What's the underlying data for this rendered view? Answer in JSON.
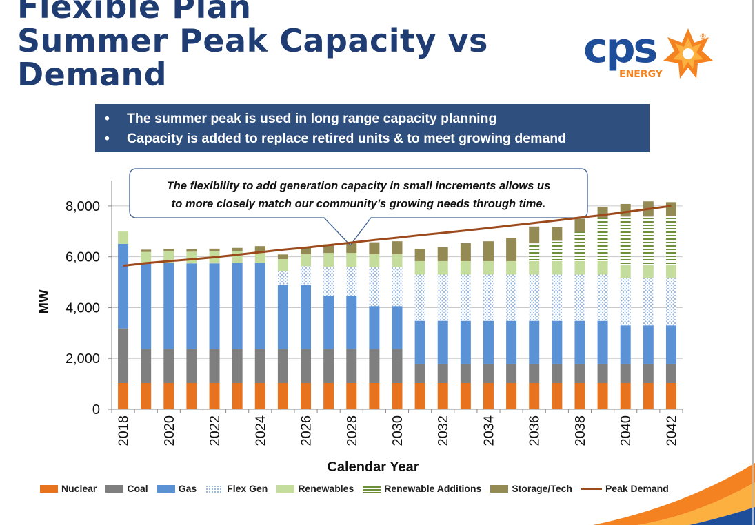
{
  "title": {
    "line1": "Flexible Plan",
    "line2": "Summer Peak Capacity vs",
    "line3": "Demand"
  },
  "logo": {
    "brand": "cps",
    "sub": "ENERGY",
    "mark": "®",
    "colors": {
      "blue": "#1e4e9a",
      "orange": "#f58220",
      "gold": "#fbb040"
    }
  },
  "bullets": [
    {
      "dot": "•",
      "text": "The summer peak is used in long range capacity planning"
    },
    {
      "dot": "•",
      "text": "Capacity is added to replace retired units & to meet growing demand"
    }
  ],
  "callout": {
    "line1": "The flexibility to add generation capacity in small increments allows us",
    "line2": "to more closely match our community’s growing needs through time."
  },
  "chart_data": {
    "type": "bar",
    "stacked": true,
    "title": "",
    "xlabel": "Calendar Year",
    "ylabel": "MW",
    "ylim": [
      0,
      9000
    ],
    "yticks": [
      0,
      2000,
      4000,
      6000,
      8000
    ],
    "ytick_labels": [
      "0",
      "2,000",
      "4,000",
      "6,000",
      "8,000"
    ],
    "categories": [
      "2018",
      "2019",
      "2020",
      "2021",
      "2022",
      "2023",
      "2024",
      "2025",
      "2026",
      "2027",
      "2028",
      "2029",
      "2030",
      "2031",
      "2032",
      "2033",
      "2034",
      "2035",
      "2036",
      "2037",
      "2038",
      "2039",
      "2040",
      "2041",
      "2042"
    ],
    "xtick_labels": [
      "2018",
      "2020",
      "2022",
      "2024",
      "2026",
      "2028",
      "2030",
      "2032",
      "2034",
      "2036",
      "2038",
      "2040",
      "2042"
    ],
    "series": [
      {
        "name": "Nuclear",
        "color": "#e8731e",
        "pattern": "solid",
        "values": [
          1030,
          1030,
          1030,
          1030,
          1030,
          1030,
          1030,
          1030,
          1030,
          1030,
          1030,
          1030,
          1030,
          1030,
          1030,
          1030,
          1030,
          1030,
          1030,
          1030,
          1030,
          1030,
          1030,
          1030,
          1030
        ]
      },
      {
        "name": "Coal",
        "color": "#7f7f7f",
        "pattern": "solid",
        "values": [
          2150,
          1340,
          1340,
          1340,
          1340,
          1340,
          1340,
          1340,
          1340,
          1340,
          1340,
          1340,
          1340,
          760,
          760,
          760,
          760,
          760,
          760,
          760,
          760,
          760,
          760,
          760,
          760
        ]
      },
      {
        "name": "Gas",
        "color": "#5b92d6",
        "pattern": "solid",
        "values": [
          3330,
          3360,
          3390,
          3370,
          3370,
          3380,
          3380,
          2520,
          2520,
          2100,
          2100,
          1690,
          1690,
          1690,
          1690,
          1690,
          1690,
          1690,
          1690,
          1690,
          1690,
          1690,
          1510,
          1510,
          1510
        ]
      },
      {
        "name": "Flex Gen",
        "color": "#b9d0ee",
        "pattern": "dots",
        "values": [
          0,
          0,
          0,
          0,
          0,
          0,
          0,
          540,
          740,
          1140,
          1140,
          1530,
          1530,
          1820,
          1820,
          1820,
          1820,
          1820,
          1820,
          1820,
          1820,
          1820,
          1870,
          1870,
          1870
        ]
      },
      {
        "name": "Renewables",
        "color": "#c4dc9c",
        "pattern": "solid",
        "values": [
          480,
          460,
          460,
          460,
          470,
          480,
          400,
          480,
          480,
          540,
          540,
          520,
          520,
          530,
          530,
          530,
          530,
          530,
          530,
          530,
          530,
          530,
          510,
          510,
          520
        ]
      },
      {
        "name": "Renewable Additions",
        "color": "#6e8f3a",
        "pattern": "hlines",
        "values": [
          0,
          0,
          0,
          0,
          0,
          0,
          0,
          0,
          0,
          0,
          0,
          0,
          0,
          0,
          0,
          0,
          0,
          0,
          700,
          800,
          1150,
          1700,
          1900,
          1900,
          1900
        ]
      },
      {
        "name": "Storage/Tech",
        "color": "#948a54",
        "pattern": "solid",
        "values": [
          0,
          90,
          90,
          100,
          110,
          120,
          270,
          180,
          270,
          340,
          400,
          460,
          500,
          480,
          550,
          710,
          780,
          920,
          660,
          540,
          520,
          430,
          500,
          600,
          560
        ]
      }
    ],
    "line_series": {
      "name": "Peak Demand",
      "color": "#9c4a1c",
      "values": [
        5650,
        5750,
        5830,
        5900,
        5980,
        6080,
        6180,
        6280,
        6360,
        6460,
        6560,
        6660,
        6750,
        6850,
        6940,
        7030,
        7130,
        7230,
        7330,
        7430,
        7540,
        7640,
        7760,
        7880,
        8000
      ]
    },
    "legend": [
      "Nuclear",
      "Coal",
      "Gas",
      "Flex Gen",
      "Renewables",
      "Renewable Additions",
      "Storage/Tech",
      "Peak Demand"
    ],
    "legend_position": "bottom",
    "grid": true
  }
}
